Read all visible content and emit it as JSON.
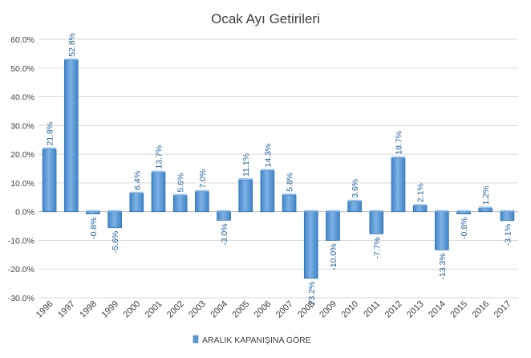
{
  "chart_data": {
    "type": "bar",
    "title": "Ocak Ayı Getirileri",
    "categories": [
      "1996",
      "1997",
      "1998",
      "1999",
      "2000",
      "2001",
      "2002",
      "2003",
      "2004",
      "2005",
      "2006",
      "2007",
      "2008",
      "2009",
      "2010",
      "2011",
      "2012",
      "2013",
      "2014",
      "2015",
      "2016",
      "2017"
    ],
    "series": [
      {
        "name": "ARALIK KAPANIŞINA GÖRE",
        "values": [
          21.8,
          52.8,
          -0.8,
          -5.6,
          6.4,
          13.7,
          5.6,
          7.0,
          -3.0,
          11.1,
          14.3,
          5.8,
          -23.2,
          -10.0,
          3.6,
          -7.7,
          18.7,
          2.1,
          -13.3,
          -0.8,
          1.2,
          -3.1
        ],
        "data_labels": [
          "21.8%",
          "52.8%",
          "-0.8%",
          "-5.6%",
          "6.4%",
          "13.7%",
          "5.6%",
          "7.0%",
          "-3.0%",
          "11.1%",
          "14.3%",
          "5.8%",
          "-23.2%",
          "-10.0%",
          "3.6%",
          "-7.7%",
          "18.7%",
          "2.1%",
          "-13.3%",
          "-0.8%",
          "1.2%",
          "-3.1%"
        ]
      }
    ],
    "ylim": [
      -30,
      60
    ],
    "yticks": [
      60,
      50,
      40,
      30,
      20,
      10,
      0,
      -10,
      -20,
      -30
    ],
    "ytick_labels": [
      "60.0%",
      "50.0%",
      "40.0%",
      "30.0%",
      "20.0%",
      "10.0%",
      "0.0%",
      "-10.0%",
      "-20.0%",
      "-30.0%"
    ],
    "grid": true,
    "legend_position": "bottom",
    "xlabel": "",
    "ylabel": ""
  },
  "colors": {
    "bar_fill": "#5b9bd5",
    "bar_edge": "#2e75b6",
    "label": "#1f5f9e",
    "grid": "#d9d9d9"
  }
}
